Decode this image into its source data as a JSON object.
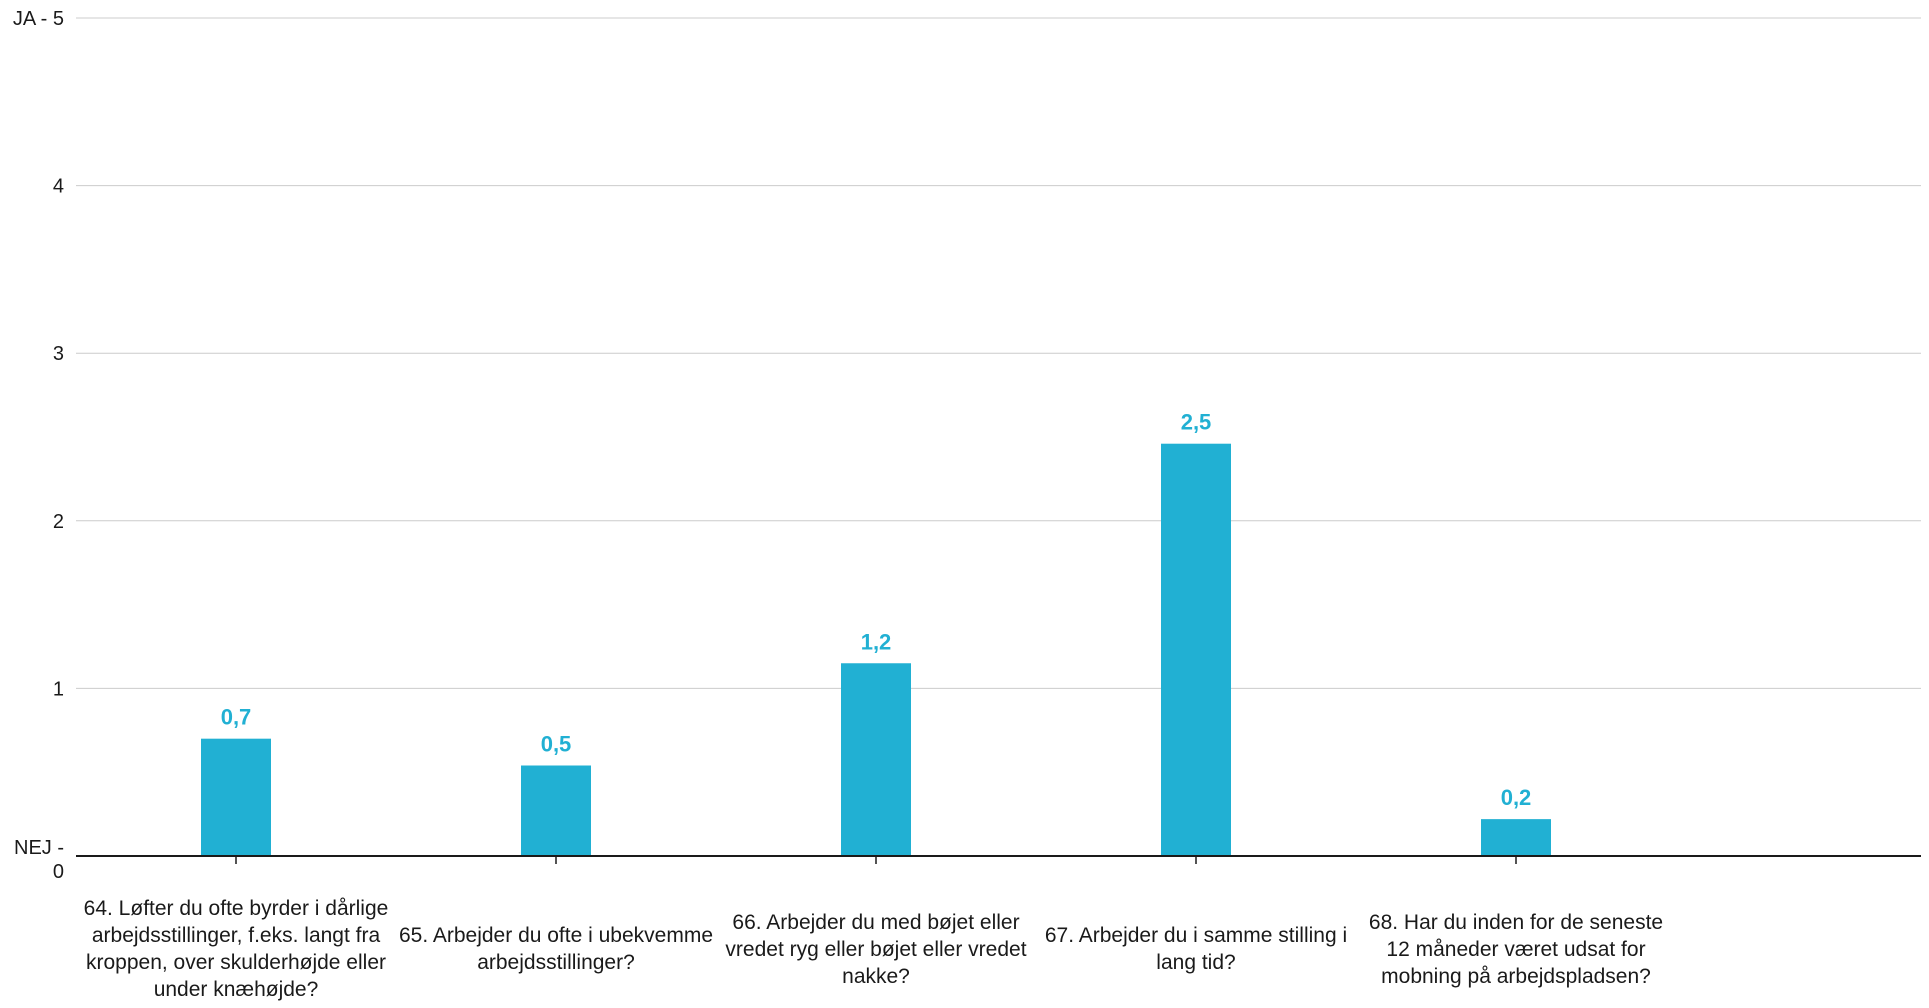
{
  "colors": {
    "bar": "#21b0d3",
    "label": "#21b0d3",
    "grid": "#cccccc",
    "axis": "#1a1a1a"
  },
  "chart_data": {
    "type": "bar",
    "categories": [
      "64. Løfter du ofte byrder i dårlige arbejdsstillinger, f.eks. langt fra kroppen, over skulderhøjde eller under knæhøjde?",
      "65. Arbejder du ofte i ubekvemme arbejdsstillinger?",
      "66. Arbejder du med bøjet eller vredet ryg eller bøjet eller vredet nakke?",
      "67. Arbejder du i samme stilling i lang tid?",
      "68. Har du inden for de seneste 12 måneder været udsat for mobning på arbejdspladsen?"
    ],
    "values": [
      0.7,
      0.54,
      1.15,
      2.46,
      0.22
    ],
    "data_labels": [
      "0,7",
      "0,5",
      "1,2",
      "2,5",
      "0,2"
    ],
    "ylim": [
      0,
      5
    ],
    "yticks": [
      0,
      1,
      2,
      3,
      4,
      5
    ],
    "ytick_labels": [
      "NEJ - 0",
      "1",
      "2",
      "3",
      "4",
      "JA - 5"
    ],
    "grid": true
  }
}
